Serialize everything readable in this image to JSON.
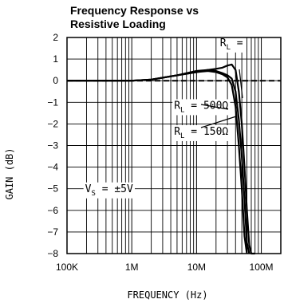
{
  "chart_data": {
    "type": "line",
    "title_line1": "Frequency Response vs",
    "title_line2": "Resistive Loading",
    "xlabel": "FREQUENCY (Hz)",
    "ylabel": "GAIN (dB)",
    "xscale": "log",
    "xlim": [
      100000,
      200000000
    ],
    "ylim": [
      -8,
      2
    ],
    "x_ticks": [
      {
        "value": 100000,
        "label": "100K"
      },
      {
        "value": 1000000,
        "label": "1M"
      },
      {
        "value": 10000000,
        "label": "10M"
      },
      {
        "value": 100000000,
        "label": "100M"
      }
    ],
    "y_ticks": [
      {
        "value": 2,
        "label": "2"
      },
      {
        "value": 1,
        "label": "1"
      },
      {
        "value": 0,
        "label": "0"
      },
      {
        "value": -1,
        "label": "−1"
      },
      {
        "value": -2,
        "label": "−2"
      },
      {
        "value": -3,
        "label": "−3"
      },
      {
        "value": -4,
        "label": "−4"
      },
      {
        "value": -5,
        "label": "−5"
      },
      {
        "value": -6,
        "label": "−6"
      },
      {
        "value": -7,
        "label": "−7"
      },
      {
        "value": -8,
        "label": "−8"
      }
    ],
    "grid": true,
    "reference_line": {
      "y": 0,
      "style": "dashed"
    },
    "series": [
      {
        "name": "R_L = ∞",
        "x": [
          100000,
          1000000,
          2000000,
          5000000,
          10000000,
          15000000,
          20000000,
          25000000,
          30000000,
          35000000,
          40000000,
          45000000,
          50000000,
          55000000,
          60000000,
          65000000,
          70000000,
          80000000
        ],
        "y": [
          0,
          0,
          0.05,
          0.25,
          0.4,
          0.5,
          0.55,
          0.6,
          0.7,
          0.75,
          0.5,
          -0.5,
          -2,
          -4,
          -6,
          -7.6,
          -8,
          -8
        ]
      },
      {
        "name": "R_L = 500Ω",
        "x": [
          100000,
          1000000,
          2000000,
          5000000,
          10000000,
          15000000,
          20000000,
          25000000,
          30000000,
          35000000,
          40000000,
          45000000,
          50000000,
          55000000,
          60000000,
          65000000
        ],
        "y": [
          0,
          0,
          0.05,
          0.25,
          0.45,
          0.5,
          0.45,
          0.35,
          0.25,
          0.1,
          -0.5,
          -1.8,
          -3.5,
          -5.5,
          -7.5,
          -8
        ]
      },
      {
        "name": "R_L = 150Ω",
        "x": [
          100000,
          1000000,
          2000000,
          5000000,
          10000000,
          15000000,
          20000000,
          25000000,
          30000000,
          35000000,
          40000000,
          45000000,
          50000000,
          55000000,
          60000000
        ],
        "y": [
          0,
          0,
          0.05,
          0.25,
          0.4,
          0.45,
          0.4,
          0.3,
          0.15,
          -0.2,
          -1.2,
          -3,
          -5,
          -7.2,
          -8
        ]
      }
    ],
    "annotations": [
      {
        "main": "R",
        "sub": "L",
        "rest": " =",
        "x": 23000000,
        "y": 1.6
      },
      {
        "main": "R",
        "sub": "L",
        "rest": " = 500Ω",
        "x": 4500000,
        "y": -1.3
      },
      {
        "main": "R",
        "sub": "L",
        "rest": " = 150Ω",
        "x": 4500000,
        "y": -2.5
      },
      {
        "main": "V",
        "sub": "S",
        "rest": " = ±5V",
        "x": 190000,
        "y": -5.15
      }
    ]
  }
}
